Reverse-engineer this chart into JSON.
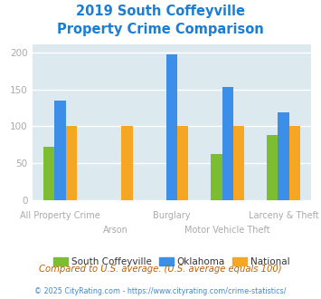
{
  "title_line1": "2019 South Coffeyville",
  "title_line2": "Property Crime Comparison",
  "title_color": "#1a7ed4",
  "categories": [
    "All Property Crime",
    "Arson",
    "Burglary",
    "Motor Vehicle Theft",
    "Larceny & Theft"
  ],
  "series": {
    "South Coffeyville": {
      "color": "#7cbd31",
      "values": [
        72,
        null,
        null,
        62,
        88
      ]
    },
    "Oklahoma": {
      "color": "#3b8fe8",
      "values": [
        135,
        null,
        197,
        153,
        119
      ]
    },
    "National": {
      "color": "#f5a623",
      "values": [
        100,
        100,
        100,
        100,
        100
      ]
    }
  },
  "ylim": [
    0,
    210
  ],
  "yticks": [
    0,
    50,
    100,
    150,
    200
  ],
  "plot_bg": "#dce9ef",
  "footer_text": "Compared to U.S. average. (U.S. average equals 100)",
  "footer_color": "#c06000",
  "credit_text": "© 2025 CityRating.com - https://www.cityrating.com/crime-statistics/",
  "credit_color": "#4488cc",
  "grid_color": "#ffffff",
  "axis_label_color": "#aaaaaa",
  "bar_width": 0.2
}
